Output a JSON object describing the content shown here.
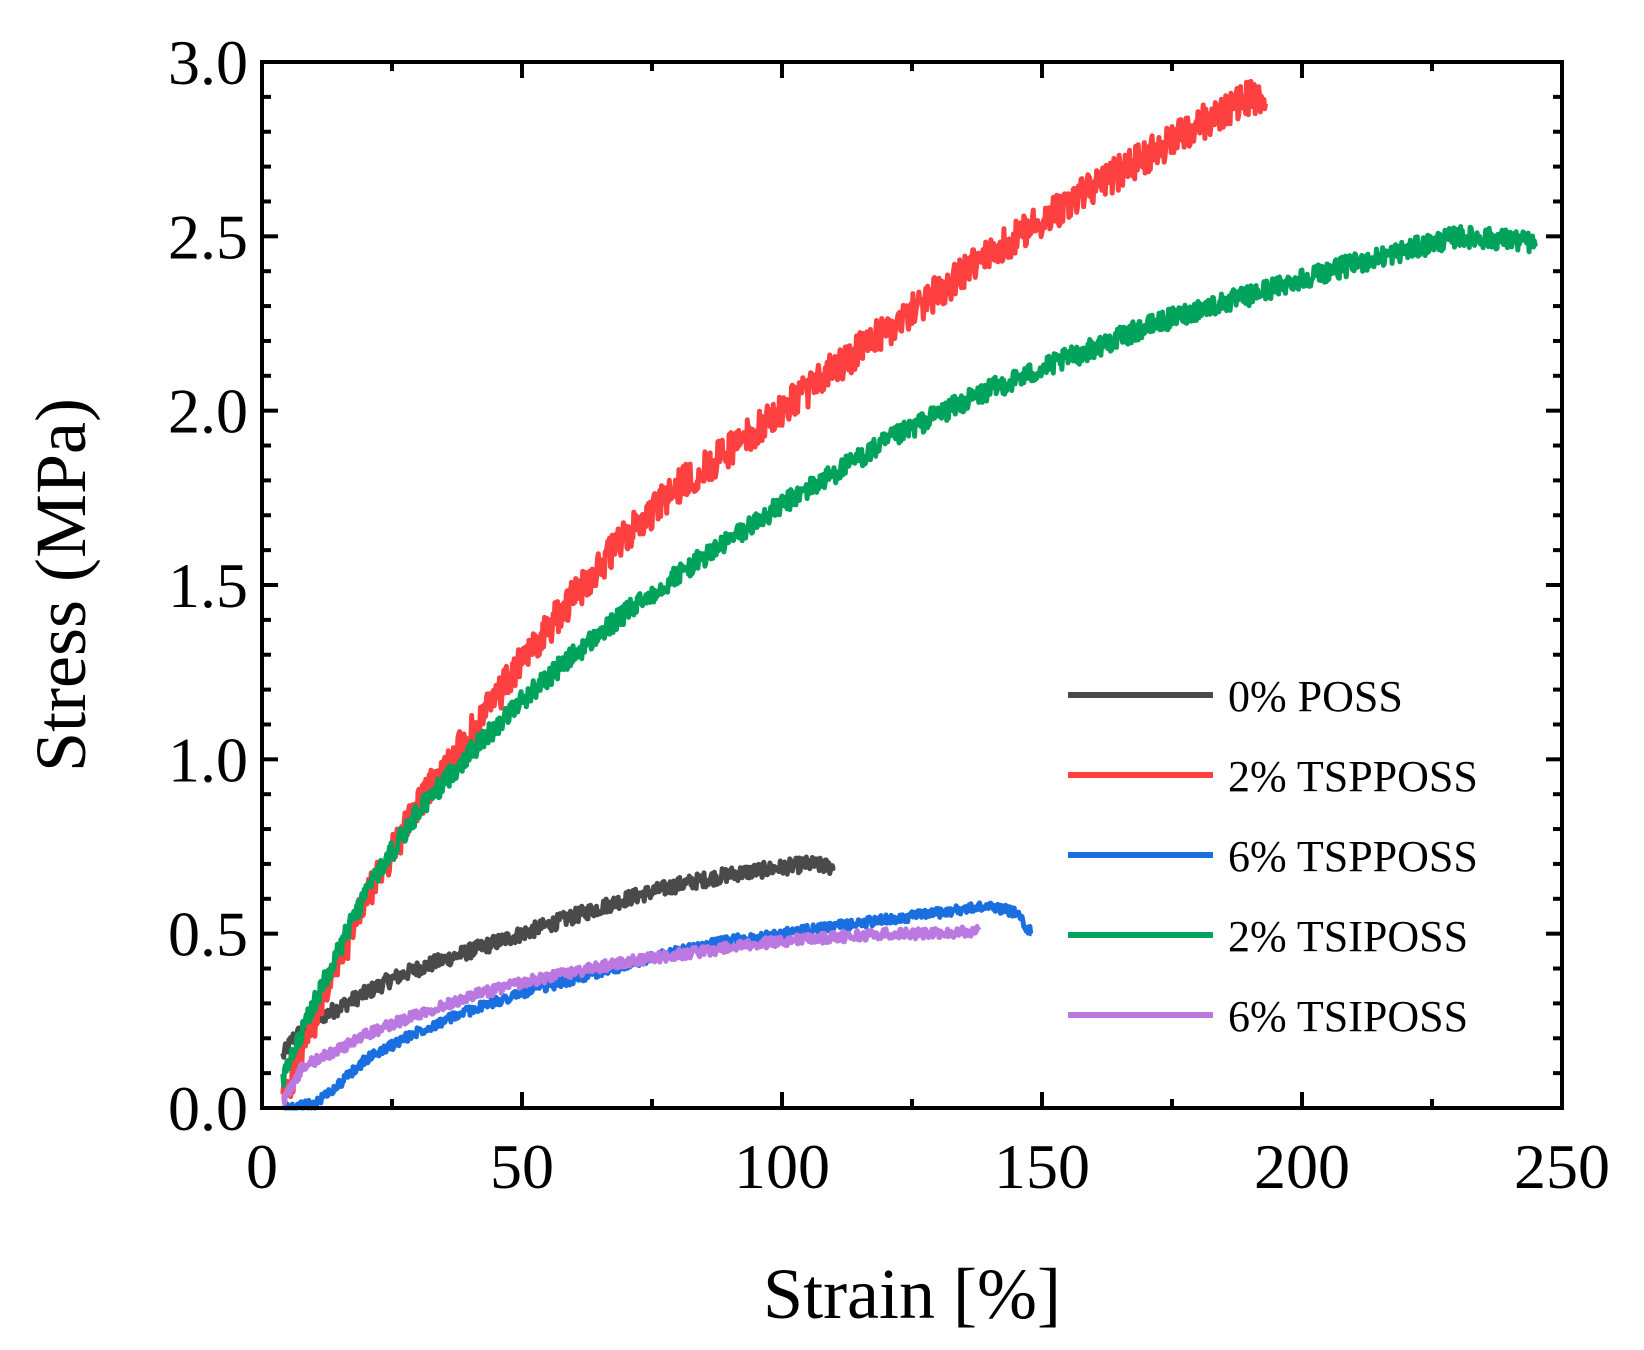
{
  "chart_data": {
    "type": "line",
    "title": "",
    "xlabel": "Strain [%]",
    "ylabel": "Stress (MPa)",
    "xlim": [
      0,
      250
    ],
    "ylim": [
      0,
      3.0
    ],
    "xticks": [
      0,
      50,
      100,
      150,
      200,
      250
    ],
    "xtick_labels": [
      "0",
      "50",
      "100",
      "150",
      "200",
      "250"
    ],
    "yticks": [
      0,
      0.5,
      1.0,
      1.5,
      2.0,
      2.5,
      3.0
    ],
    "ytick_labels": [
      "0.0",
      "0.5",
      "1.0",
      "1.5",
      "2.0",
      "2.5",
      "3.0"
    ],
    "grid": false,
    "legend_position": "lower-right",
    "series": [
      {
        "name": "0% POSS",
        "color": "#4a4a4a",
        "noise": 0.022,
        "x": [
          4,
          6,
          10,
          15,
          20,
          25,
          30,
          40,
          50,
          60,
          70,
          80,
          90,
          100,
          105,
          110
        ],
        "y": [
          0.15,
          0.2,
          0.25,
          0.29,
          0.33,
          0.37,
          0.4,
          0.45,
          0.5,
          0.55,
          0.6,
          0.64,
          0.67,
          0.69,
          0.7,
          0.69
        ]
      },
      {
        "name": "2% TSPPOSS",
        "color": "#ff4040",
        "noise": 0.05,
        "x": [
          4,
          10,
          20,
          30,
          40,
          50,
          60,
          70,
          80,
          90,
          100,
          110,
          120,
          130,
          140,
          150,
          160,
          170,
          180,
          190,
          193
        ],
        "y": [
          0.02,
          0.25,
          0.6,
          0.87,
          1.07,
          1.28,
          1.47,
          1.64,
          1.78,
          1.89,
          2.0,
          2.12,
          2.23,
          2.34,
          2.45,
          2.55,
          2.64,
          2.73,
          2.82,
          2.9,
          2.88
        ]
      },
      {
        "name": "6% TSPPOSS",
        "color": "#1a6fe0",
        "noise": 0.014,
        "x": [
          4,
          10,
          15,
          20,
          30,
          40,
          50,
          60,
          70,
          80,
          90,
          100,
          110,
          120,
          130,
          140,
          145,
          148
        ],
        "y": [
          0.0,
          0.01,
          0.07,
          0.14,
          0.22,
          0.28,
          0.33,
          0.37,
          0.41,
          0.45,
          0.48,
          0.5,
          0.52,
          0.54,
          0.56,
          0.58,
          0.56,
          0.5
        ]
      },
      {
        "name": "2% TSIPOSS",
        "color": "#00a35c",
        "noise": 0.03,
        "x": [
          4,
          10,
          20,
          30,
          40,
          50,
          60,
          70,
          80,
          90,
          100,
          110,
          120,
          130,
          140,
          150,
          160,
          170,
          180,
          190,
          200,
          210,
          220,
          230,
          240,
          245
        ],
        "y": [
          0.08,
          0.3,
          0.62,
          0.85,
          1.02,
          1.17,
          1.3,
          1.42,
          1.53,
          1.63,
          1.73,
          1.82,
          1.91,
          1.99,
          2.06,
          2.12,
          2.18,
          2.24,
          2.29,
          2.33,
          2.38,
          2.42,
          2.46,
          2.5,
          2.49,
          2.48
        ]
      },
      {
        "name": "6% TSIPOSS",
        "color": "#bb78e0",
        "noise": 0.015,
        "x": [
          4,
          8,
          15,
          20,
          30,
          40,
          50,
          60,
          70,
          80,
          90,
          100,
          110,
          120,
          130,
          138
        ],
        "y": [
          0.02,
          0.12,
          0.17,
          0.21,
          0.27,
          0.32,
          0.36,
          0.39,
          0.42,
          0.44,
          0.46,
          0.48,
          0.49,
          0.5,
          0.5,
          0.51
        ]
      }
    ]
  }
}
